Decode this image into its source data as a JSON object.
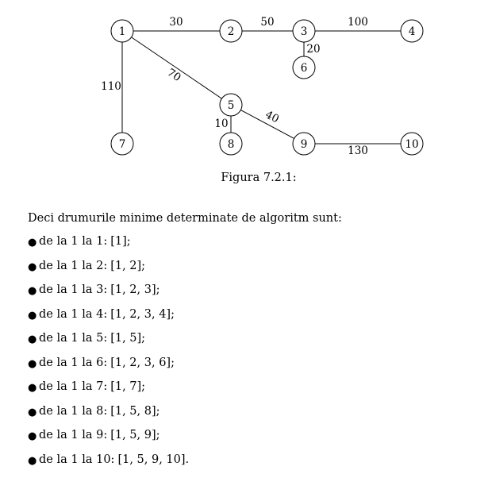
{
  "figure": {
    "nodes": [
      {
        "id": "1",
        "label": "1"
      },
      {
        "id": "2",
        "label": "2"
      },
      {
        "id": "3",
        "label": "3"
      },
      {
        "id": "4",
        "label": "4"
      },
      {
        "id": "5",
        "label": "5"
      },
      {
        "id": "6",
        "label": "6"
      },
      {
        "id": "7",
        "label": "7"
      },
      {
        "id": "8",
        "label": "8"
      },
      {
        "id": "9",
        "label": "9"
      },
      {
        "id": "10",
        "label": "10"
      }
    ],
    "edges": [
      {
        "from": "1",
        "to": "2",
        "weight": "30"
      },
      {
        "from": "2",
        "to": "3",
        "weight": "50"
      },
      {
        "from": "3",
        "to": "4",
        "weight": "100"
      },
      {
        "from": "3",
        "to": "6",
        "weight": "20"
      },
      {
        "from": "1",
        "to": "7",
        "weight": "110"
      },
      {
        "from": "1",
        "to": "5",
        "weight": "70"
      },
      {
        "from": "5",
        "to": "8",
        "weight": "10"
      },
      {
        "from": "5",
        "to": "9",
        "weight": "40"
      },
      {
        "from": "9",
        "to": "10",
        "weight": "130"
      }
    ],
    "caption": "Figura 7.2.1:"
  },
  "intro": "Deci drumurile minime determinate de algoritm sunt:",
  "paths": [
    {
      "text": "de la 1 la 1:",
      "path": "[1];"
    },
    {
      "text": "de la 1 la 2:",
      "path": "[1, 2];"
    },
    {
      "text": "de la 1 la 3:",
      "path": "[1, 2, 3];"
    },
    {
      "text": "de la 1 la 4:",
      "path": "[1, 2, 3, 4];"
    },
    {
      "text": "de la 1 la 5:",
      "path": "[1, 5];"
    },
    {
      "text": "de la 1 la 6:",
      "path": "[1, 2, 3, 6];"
    },
    {
      "text": "de la 1 la 7:",
      "path": "[1, 7];"
    },
    {
      "text": "de la 1 la 8:",
      "path": "[1, 5, 8];"
    },
    {
      "text": "de la 1 la 9:",
      "path": "[1, 5, 9];"
    },
    {
      "text": "de la 1 la 10:",
      "path": "[1, 5, 9, 10]."
    }
  ]
}
